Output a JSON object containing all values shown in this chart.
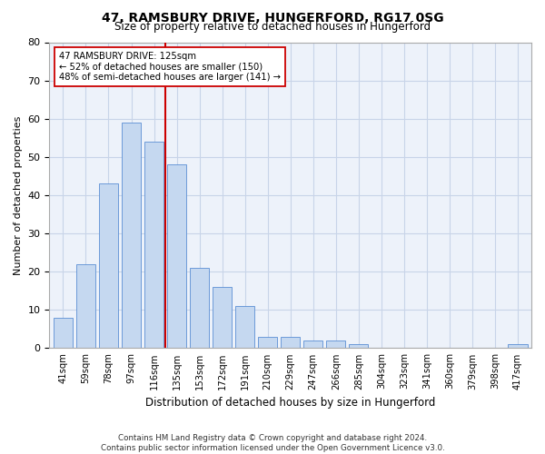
{
  "title": "47, RAMSBURY DRIVE, HUNGERFORD, RG17 0SG",
  "subtitle": "Size of property relative to detached houses in Hungerford",
  "xlabel": "Distribution of detached houses by size in Hungerford",
  "ylabel": "Number of detached properties",
  "categories": [
    "41sqm",
    "59sqm",
    "78sqm",
    "97sqm",
    "116sqm",
    "135sqm",
    "153sqm",
    "172sqm",
    "191sqm",
    "210sqm",
    "229sqm",
    "247sqm",
    "266sqm",
    "285sqm",
    "304sqm",
    "323sqm",
    "341sqm",
    "360sqm",
    "379sqm",
    "398sqm",
    "417sqm"
  ],
  "values": [
    8,
    22,
    43,
    59,
    54,
    48,
    21,
    16,
    11,
    3,
    3,
    2,
    2,
    1,
    0,
    0,
    0,
    0,
    0,
    0,
    1
  ],
  "bar_color": "#c5d8f0",
  "bar_edge_color": "#5b8fd4",
  "vline_x": 4.5,
  "vline_color": "#cc0000",
  "annotation_text": "47 RAMSBURY DRIVE: 125sqm\n← 52% of detached houses are smaller (150)\n48% of semi-detached houses are larger (141) →",
  "annotation_box_color": "#ffffff",
  "annotation_box_edge_color": "#cc0000",
  "ylim": [
    0,
    80
  ],
  "yticks": [
    0,
    10,
    20,
    30,
    40,
    50,
    60,
    70,
    80
  ],
  "footer": "Contains HM Land Registry data © Crown copyright and database right 2024.\nContains public sector information licensed under the Open Government Licence v3.0.",
  "grid_color": "#c8d4e8",
  "background_color": "#edf2fa"
}
